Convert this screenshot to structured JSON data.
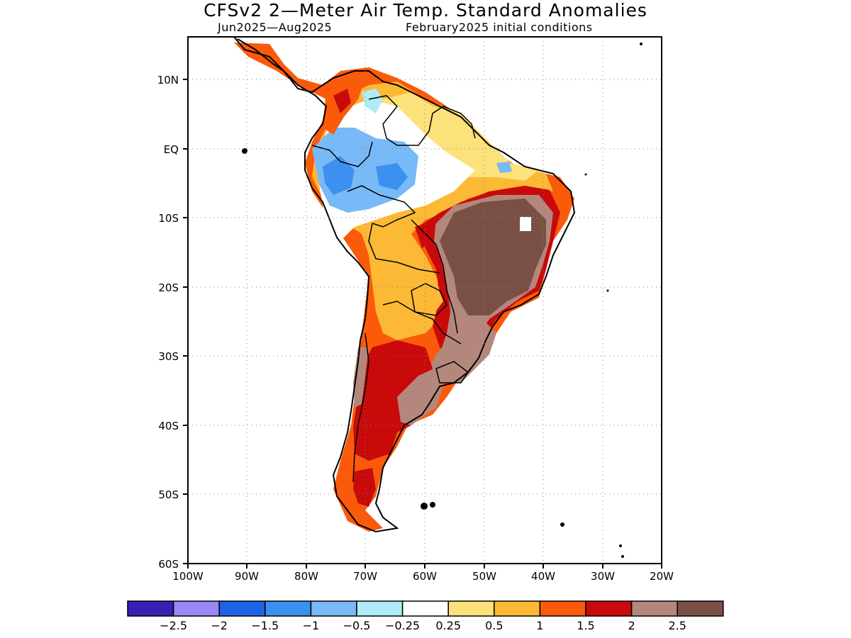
{
  "header": {
    "title": "CFSv2 2—Meter Air Temp. Standard Anomalies",
    "period": "Jun2025—Aug2025",
    "init": "February2025 initial conditions"
  },
  "axes": {
    "y_ticks": [
      "10N",
      "EQ",
      "10S",
      "20S",
      "30S",
      "40S",
      "50S",
      "60S"
    ],
    "x_ticks": [
      "100W",
      "90W",
      "80W",
      "70W",
      "60W",
      "50W",
      "40W",
      "30W",
      "20W"
    ]
  },
  "colorbar": {
    "colors": [
      "#3a1fb4",
      "#9b87f5",
      "#1e63e6",
      "#3c91f0",
      "#78b9f8",
      "#b0ecf8",
      "#ffffff",
      "#fde17a",
      "#fcb935",
      "#fa5a0a",
      "#c80a0a",
      "#b4877d",
      "#7b5044"
    ],
    "labels": [
      "−2.5",
      "−2",
      "−1.5",
      "−1",
      "−0.5",
      "−0.25",
      "0.25",
      "0.5",
      "1",
      "1.5",
      "2",
      "2.5"
    ]
  }
}
